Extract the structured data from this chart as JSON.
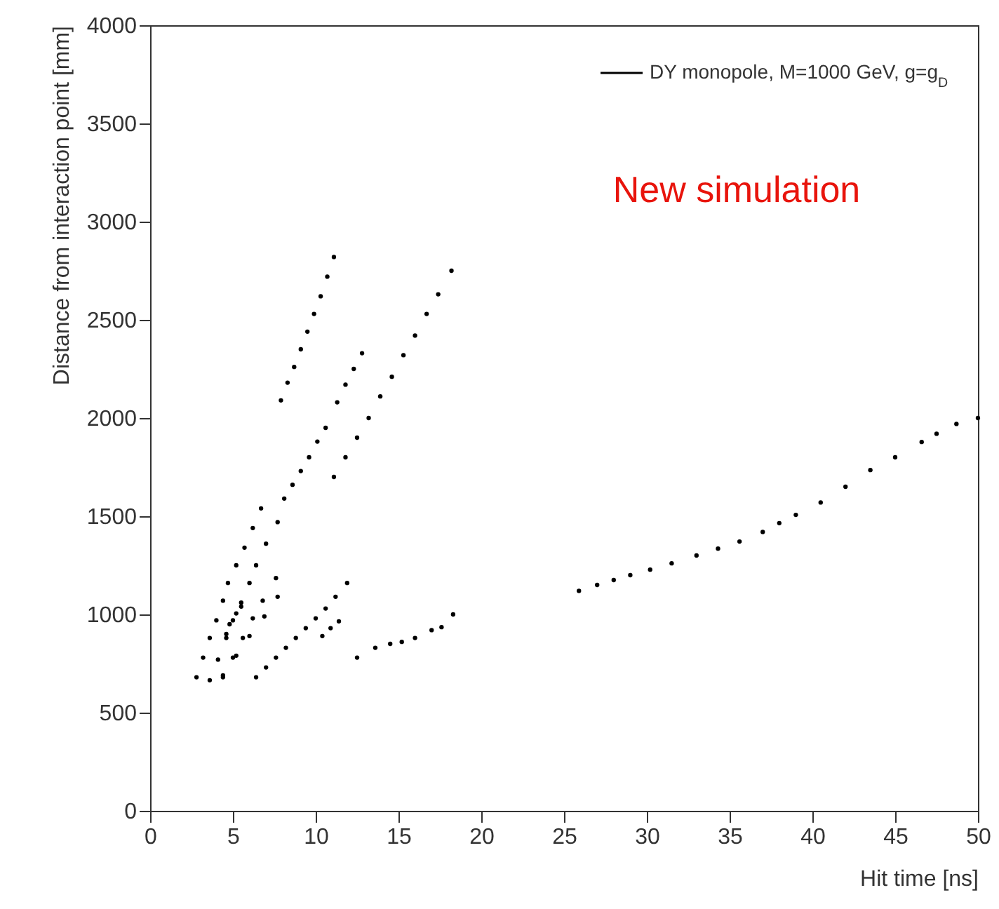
{
  "chart_data": {
    "type": "scatter",
    "xlabel": "Hit time [ns]",
    "ylabel": "Distance from interaction point [mm]",
    "xlim": [
      0,
      50
    ],
    "ylim": [
      0,
      4000
    ],
    "xticks": [
      0,
      5,
      10,
      15,
      20,
      25,
      30,
      35,
      40,
      45,
      50
    ],
    "yticks": [
      0,
      500,
      1000,
      1500,
      2000,
      2500,
      3000,
      3500,
      4000
    ],
    "grid": false,
    "legend": "top right",
    "marker": "circle",
    "annotations": [
      "New simulation"
    ],
    "series": [
      {
        "name": "DY monopole, M=1000 GeV, g=g$_{D}$",
        "color": "#000000",
        "x": [
          7.9,
          8.3,
          8.7,
          9.1,
          9.5,
          9.9,
          10.3,
          10.7,
          11.1,
          8.1,
          8.6,
          9.1,
          9.6,
          10.1,
          10.6,
          11.3,
          11.8,
          12.3,
          12.8,
          11.1,
          11.8,
          12.5,
          13.2,
          13.9,
          14.6,
          15.3,
          16.0,
          16.7,
          17.4,
          18.2,
          6.4,
          7.0,
          7.6,
          8.2,
          8.8,
          9.4,
          10.0,
          10.6,
          11.2,
          11.9,
          10.4,
          10.9,
          11.4,
          12.5,
          13.6,
          14.5,
          15.2,
          16.0,
          17.0,
          17.6,
          18.3,
          2.8,
          3.2,
          3.6,
          4.0,
          4.4,
          4.7,
          5.2,
          5.7,
          6.2,
          6.7,
          3.6,
          4.1,
          4.6,
          5.0,
          5.5,
          6.0,
          6.4,
          7.0,
          7.7,
          4.4,
          5.0,
          5.6,
          6.2,
          6.8,
          7.6,
          4.4,
          5.2,
          6.0,
          6.9,
          7.7,
          4.6,
          4.8,
          5.2,
          5.5,
          25.9,
          27,
          28,
          29,
          30.2,
          31.5,
          33,
          34.3,
          35.6,
          37,
          38,
          39,
          40.5,
          42,
          43.5,
          45,
          46.6,
          47.5,
          48.7,
          50
        ],
        "values": [
          2090,
          2180,
          2260,
          2350,
          2440,
          2530,
          2620,
          2720,
          2820,
          1590,
          1660,
          1730,
          1800,
          1880,
          1950,
          2080,
          2170,
          2250,
          2330,
          1700,
          1800,
          1900,
          2000,
          2110,
          2210,
          2320,
          2420,
          2530,
          2630,
          2750,
          680,
          730,
          780,
          830,
          880,
          930,
          980,
          1030,
          1090,
          1160,
          890,
          930,
          965,
          780,
          830,
          850,
          860,
          880,
          920,
          935,
          1000,
          680,
          780,
          880,
          970,
          1070,
          1160,
          1250,
          1340,
          1440,
          1540,
          665,
          770,
          880,
          970,
          1060,
          1160,
          1250,
          1360,
          1470,
          680,
          780,
          880,
          980,
          1070,
          1185,
          690,
          790,
          890,
          990,
          1090,
          900,
          950,
          1005,
          1040,
          1120,
          1150,
          1175,
          1200,
          1228,
          1260,
          1300,
          1335,
          1371,
          1420,
          1465,
          1507,
          1570,
          1650,
          1735,
          1800,
          1878,
          1920,
          1970,
          2000
        ]
      }
    ]
  }
}
